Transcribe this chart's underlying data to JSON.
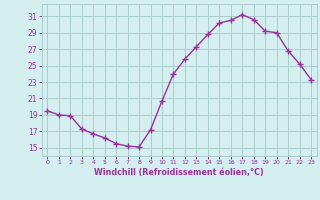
{
  "x": [
    0,
    1,
    2,
    3,
    4,
    5,
    6,
    7,
    8,
    9,
    10,
    11,
    12,
    13,
    14,
    15,
    16,
    17,
    18,
    19,
    20,
    21,
    22,
    23
  ],
  "y": [
    19.5,
    19.0,
    18.9,
    17.3,
    16.7,
    16.2,
    15.5,
    15.2,
    15.1,
    17.2,
    20.7,
    24.0,
    25.8,
    27.3,
    28.8,
    30.2,
    30.5,
    31.2,
    30.6,
    29.2,
    29.0,
    26.8,
    25.2,
    23.3
  ],
  "line_color": "#993399",
  "marker": "+",
  "markersize": 4,
  "linewidth": 1.0,
  "bg_color": "#d5eef0",
  "grid_color": "#aacccc",
  "tick_color": "#993399",
  "xlabel": "Windchill (Refroidissement éolien,°C)",
  "xlabel_color": "#993399",
  "ylabel_ticks": [
    15,
    17,
    19,
    21,
    23,
    25,
    27,
    29,
    31
  ],
  "ylim": [
    14.0,
    32.5
  ],
  "xlim": [
    -0.5,
    23.5
  ],
  "xtick_labels": [
    "0",
    "1",
    "2",
    "3",
    "4",
    "5",
    "6",
    "7",
    "8",
    "9",
    "10",
    "11",
    "12",
    "13",
    "14",
    "15",
    "16",
    "17",
    "18",
    "19",
    "20",
    "21",
    "22",
    "23"
  ]
}
